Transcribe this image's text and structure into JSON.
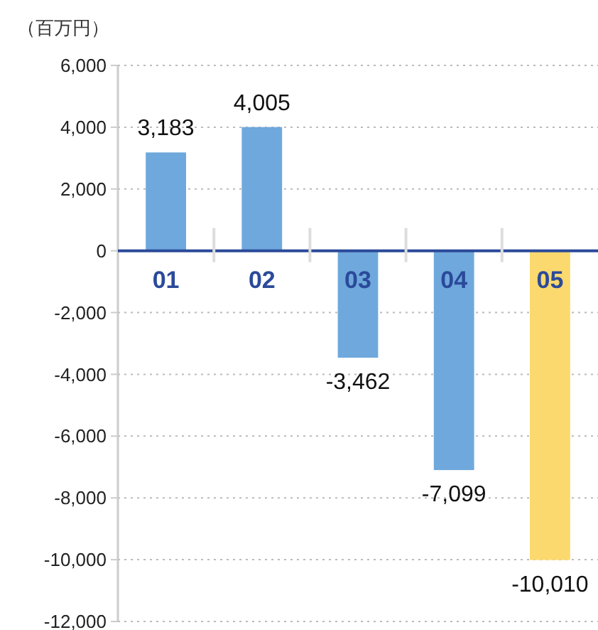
{
  "chart_data": {
    "type": "bar",
    "ylabel": "（百万円）",
    "categories": [
      "01",
      "02",
      "03",
      "04",
      "05"
    ],
    "values": [
      3183,
      4005,
      -3462,
      -7099,
      -10010
    ],
    "colors": [
      "#6fa8dc",
      "#6fa8dc",
      "#6fa8dc",
      "#6fa8dc",
      "#fbd96e"
    ],
    "value_labels": [
      "3,183",
      "4,005",
      "-3,462",
      "-7,099",
      "-10,010"
    ],
    "ylim": [
      -12000,
      6000
    ],
    "yticks": [
      {
        "value": 6000,
        "label": "6,000"
      },
      {
        "value": 4000,
        "label": "4,000"
      },
      {
        "value": 2000,
        "label": "2,000"
      },
      0,
      {
        "value": -2000,
        "label": "-2,000"
      },
      {
        "value": -4000,
        "label": "-4,000"
      },
      {
        "value": -6000,
        "label": "-6,000"
      },
      {
        "value": -8000,
        "label": "-8,000"
      },
      {
        "value": -10000,
        "label": "-10,000"
      },
      {
        "value": -12000,
        "label": "-12,000"
      }
    ],
    "grid": "y"
  }
}
